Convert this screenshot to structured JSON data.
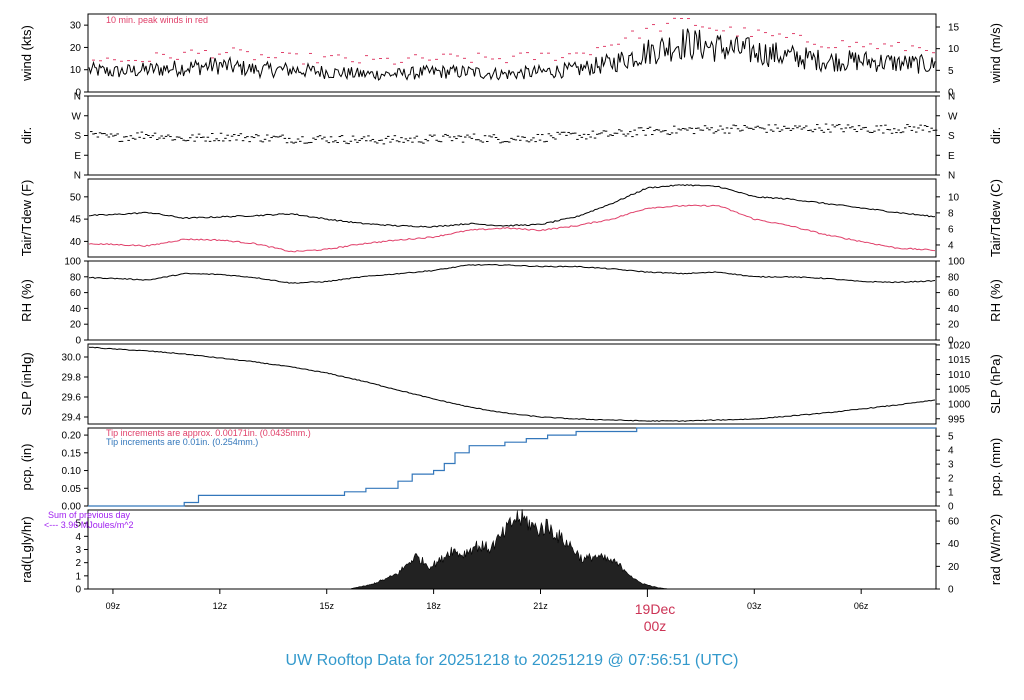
{
  "title": "UW Rooftop Data for 20251218  to  20251219 @ 07:56:51  (UTC)",
  "date_marker": {
    "day": "19Dec",
    "hour": "00z"
  },
  "colors": {
    "black": "#000000",
    "red": "#e0406a",
    "blue": "#3377bb",
    "purple": "#a020f0",
    "title": "#3399cc"
  },
  "chart_data": [
    {
      "type": "line",
      "panel": "wind",
      "ylabel": "wind (kts)",
      "ylabel_right": "wind (m/s)",
      "ylim": [
        0,
        35
      ],
      "yticks": [
        0,
        10,
        20,
        30
      ],
      "yticks_right": [
        0,
        5,
        10,
        15
      ],
      "annotation": "10 min. peak winds in red",
      "series": [
        {
          "name": "",
          "color": "#000000",
          "x": [
            8.3,
            9,
            10,
            11,
            12,
            13,
            14,
            15,
            16,
            17,
            18,
            19,
            20,
            21,
            22,
            23,
            24,
            25,
            26,
            27,
            28,
            29,
            30,
            31,
            32.1
          ],
          "y": [
            10,
            9,
            10,
            11,
            12,
            10,
            10,
            9,
            8,
            8,
            9,
            9,
            8,
            9,
            10,
            13,
            18,
            22,
            20,
            18,
            16,
            14,
            14,
            13,
            12
          ]
        },
        {
          "name": "10 min. peak winds",
          "color": "#e0406a",
          "style": "dash",
          "x": [
            8.3,
            9,
            10,
            11,
            12,
            13,
            14,
            15,
            16,
            17,
            18,
            19,
            20,
            21,
            22,
            23,
            24,
            25,
            26,
            27,
            28,
            29,
            30,
            31,
            32.1
          ],
          "y": [
            16,
            14,
            15,
            17,
            18,
            16,
            15,
            15,
            14,
            14,
            15,
            15,
            15,
            16,
            17,
            22,
            28,
            32,
            28,
            26,
            24,
            22,
            21,
            20,
            20
          ]
        }
      ]
    },
    {
      "type": "scatter",
      "panel": "dir",
      "ylabel": "dir.",
      "ylabel_right": "dir.",
      "ytick_labels": [
        "N",
        "E",
        "S",
        "W",
        "N"
      ],
      "ylim": [
        0,
        360
      ],
      "series": [
        {
          "name": "",
          "color": "#000000",
          "x": [
            8.3,
            9,
            10,
            11,
            12,
            13,
            14,
            15,
            16,
            17,
            18,
            19,
            20,
            21,
            22,
            23,
            24,
            25,
            26,
            27,
            28,
            29,
            30,
            31,
            32.1
          ],
          "y": [
            180,
            170,
            185,
            165,
            175,
            170,
            165,
            165,
            160,
            160,
            165,
            170,
            165,
            170,
            180,
            185,
            200,
            205,
            210,
            212,
            210,
            215,
            210,
            210,
            215
          ]
        }
      ]
    },
    {
      "type": "line",
      "panel": "temp",
      "ylabel": "Tair/Tdew (F)",
      "ylabel_right": "Tair/Tdew (C)",
      "ylim": [
        36.5,
        54
      ],
      "yticks": [
        40,
        45,
        50
      ],
      "yticks_right": [
        4,
        6,
        8,
        10
      ],
      "series": [
        {
          "name": "Tair",
          "color": "#000000",
          "x": [
            8.3,
            9,
            10,
            11,
            12,
            13,
            14,
            15,
            16,
            17,
            18,
            19,
            20,
            21,
            22,
            23,
            24,
            25,
            26,
            27,
            28,
            29,
            30,
            31,
            32.1
          ],
          "y": [
            45.8,
            46,
            46.5,
            45.2,
            45.5,
            45.8,
            46.2,
            45,
            44,
            43.5,
            43.3,
            44,
            43.5,
            43.8,
            45.5,
            48.5,
            52,
            52.7,
            52.3,
            50,
            49.5,
            48.5,
            47.5,
            46.5,
            45.5
          ]
        },
        {
          "name": "Tdew",
          "color": "#e0406a",
          "x": [
            8.3,
            9,
            10,
            11,
            12,
            13,
            14,
            15,
            16,
            17,
            18,
            19,
            20,
            21,
            22,
            23,
            24,
            25,
            26,
            27,
            28,
            29,
            30,
            31,
            32.1
          ],
          "y": [
            39.5,
            39.3,
            39,
            40.5,
            40.3,
            39.5,
            37.7,
            38.2,
            39.5,
            40.3,
            41,
            42.5,
            43,
            42.5,
            43.5,
            45,
            47.5,
            48,
            48,
            45,
            43.5,
            41.5,
            40,
            38.5,
            38
          ]
        }
      ]
    },
    {
      "type": "line",
      "panel": "rh",
      "ylabel": "RH (%)",
      "ylabel_right": "RH (%)",
      "ylim": [
        0,
        100
      ],
      "yticks": [
        0,
        20,
        40,
        60,
        80,
        100
      ],
      "series": [
        {
          "name": "",
          "color": "#000000",
          "x": [
            8.3,
            9,
            10,
            11,
            12,
            13,
            14,
            15,
            16,
            17,
            18,
            19,
            20,
            21,
            22,
            23,
            24,
            25,
            26,
            27,
            28,
            29,
            30,
            31,
            32.1
          ],
          "y": [
            79,
            78,
            76,
            84,
            83,
            79,
            72,
            74,
            80,
            84,
            88,
            95,
            95,
            93,
            93,
            90,
            86,
            84,
            86,
            80,
            80,
            78,
            74,
            73,
            75
          ]
        }
      ]
    },
    {
      "type": "line",
      "panel": "slp",
      "ylabel": "SLP (inHg)",
      "ylabel_right": "SLP (hPa)",
      "ylim": [
        29.33,
        30.13
      ],
      "yticks": [
        29.4,
        29.6,
        29.8,
        30.0
      ],
      "yticks_right": [
        995,
        1000,
        1005,
        1010,
        1015,
        1020
      ],
      "series": [
        {
          "name": "",
          "color": "#000000",
          "x": [
            8.3,
            9,
            10,
            11,
            12,
            13,
            14,
            15,
            16,
            17,
            18,
            19,
            20,
            21,
            22,
            23,
            24,
            25,
            26,
            27,
            28,
            29,
            30,
            31,
            32.1
          ],
          "y": [
            30.1,
            30.08,
            30.06,
            30.03,
            29.99,
            29.95,
            29.9,
            29.84,
            29.76,
            29.67,
            29.58,
            29.5,
            29.44,
            29.4,
            29.38,
            29.37,
            29.36,
            29.36,
            29.37,
            29.38,
            29.41,
            29.44,
            29.48,
            29.52,
            29.57
          ]
        }
      ]
    },
    {
      "type": "line",
      "panel": "pcp",
      "ylabel": "pcp. (in)",
      "ylabel_right": "pcp. (mm)",
      "ylim": [
        0,
        0.22
      ],
      "yticks": [
        0,
        0.05,
        0.1,
        0.15,
        0.2
      ],
      "yticks_right": [
        0,
        1,
        2,
        3,
        4,
        5
      ],
      "annotation_red": "Tip increments are approx. 0.00171in. (0.0435mm.)",
      "annotation_blue": "Tip increments are 0.01in. (0.254mm.)",
      "series": [
        {
          "name": "",
          "color": "#3377bb",
          "style": "step",
          "x": [
            8.3,
            10.5,
            11.0,
            11.4,
            15.0,
            15.5,
            16.1,
            17.0,
            17.4,
            18.0,
            18.3,
            18.6,
            19.0,
            19.4,
            20.0,
            20.6,
            21.2,
            22.0,
            23.7,
            32.1
          ],
          "y": [
            0,
            0,
            0.01,
            0.03,
            0.03,
            0.04,
            0.05,
            0.07,
            0.09,
            0.1,
            0.12,
            0.15,
            0.17,
            0.17,
            0.18,
            0.19,
            0.2,
            0.21,
            0.22,
            0.22
          ]
        }
      ]
    },
    {
      "type": "area",
      "panel": "rad",
      "ylabel": "rad(Lgly/hr)",
      "ylabel_right": "rad (W/m^2)",
      "ylim": [
        0,
        6
      ],
      "yticks": [
        0,
        1,
        2,
        3,
        4,
        5
      ],
      "yticks_right": [
        0,
        20,
        40,
        60
      ],
      "annotation": "Sum of previous day",
      "annotation2": "<--- 3.96 MJoules/m^2",
      "series": [
        {
          "name": "",
          "color": "#000000",
          "x": [
            15.7,
            16.2,
            16.7,
            17.0,
            17.5,
            17.9,
            18.2,
            18.5,
            18.8,
            19.2,
            19.6,
            20.0,
            20.3,
            20.6,
            20.9,
            21.2,
            21.5,
            21.8,
            22.2,
            22.5,
            22.8,
            23.1,
            23.4,
            23.7,
            24.0,
            24.3,
            24.6
          ],
          "y": [
            0.05,
            0.3,
            0.8,
            1.2,
            2.5,
            1.7,
            2.2,
            3.0,
            2.6,
            3.3,
            3.1,
            4.3,
            5.4,
            5.2,
            4.5,
            4.8,
            4.0,
            3.4,
            2.2,
            2.5,
            2.3,
            2.0,
            1.4,
            0.6,
            0.3,
            0.1,
            0
          ]
        }
      ]
    }
  ],
  "xaxis": {
    "xlim": [
      8.3,
      32.1
    ],
    "ticks": [
      9,
      12,
      15,
      18,
      21,
      27,
      30
    ],
    "tick_labels": [
      "09z",
      "12z",
      "15z",
      "18z",
      "21z",
      "03z",
      "06z"
    ],
    "day_tick": 24
  }
}
